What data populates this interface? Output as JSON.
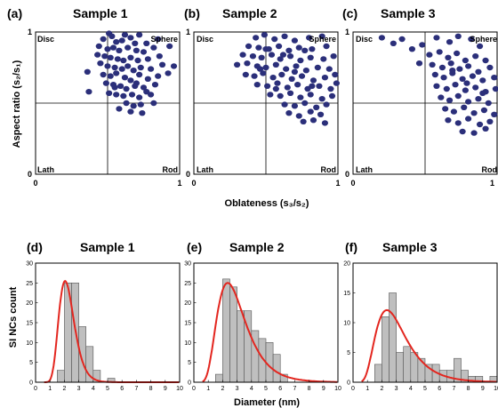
{
  "top_row": {
    "quadrants": {
      "top_left": "Disc",
      "top_right": "Sphere",
      "bottom_left": "Lath",
      "bottom_right": "Rod"
    },
    "xlabel": "Oblateness (s₃/s₂)",
    "ylabel": "Aspect ratio (s₂/s₁)",
    "tick_zero": "0",
    "tick_one": "1"
  },
  "bottom_row": {
    "xlabel": "Diameter (nm)",
    "ylabel": "SI NCs count"
  },
  "colors": {
    "scatter": "#2b2f7a",
    "bar_fill": "#bfbfbf",
    "bar_edge": "#555555",
    "fit_line": "#e3261f"
  },
  "chart_data": [
    {
      "type": "scatter",
      "panel": "(a)",
      "title": "Sample 1",
      "xlim": [
        0,
        1
      ],
      "ylim": [
        0,
        1
      ],
      "divider": {
        "x": 0.5,
        "y": 0.5
      },
      "points": [
        [
          0.51,
          0.99
        ],
        [
          0.53,
          0.97
        ],
        [
          0.62,
          0.98
        ],
        [
          0.66,
          0.96
        ],
        [
          0.72,
          0.98
        ],
        [
          0.47,
          0.95
        ],
        [
          0.56,
          0.93
        ],
        [
          0.6,
          0.94
        ],
        [
          0.69,
          0.92
        ],
        [
          0.77,
          0.92
        ],
        [
          0.85,
          0.95
        ],
        [
          0.44,
          0.9
        ],
        [
          0.5,
          0.88
        ],
        [
          0.54,
          0.89
        ],
        [
          0.58,
          0.87
        ],
        [
          0.64,
          0.89
        ],
        [
          0.7,
          0.87
        ],
        [
          0.75,
          0.86
        ],
        [
          0.82,
          0.89
        ],
        [
          0.93,
          0.9
        ],
        [
          0.43,
          0.84
        ],
        [
          0.48,
          0.83
        ],
        [
          0.52,
          0.82
        ],
        [
          0.57,
          0.81
        ],
        [
          0.61,
          0.8
        ],
        [
          0.66,
          0.82
        ],
        [
          0.71,
          0.8
        ],
        [
          0.78,
          0.81
        ],
        [
          0.86,
          0.83
        ],
        [
          0.45,
          0.78
        ],
        [
          0.5,
          0.76
        ],
        [
          0.55,
          0.75
        ],
        [
          0.6,
          0.74
        ],
        [
          0.64,
          0.76
        ],
        [
          0.68,
          0.73
        ],
        [
          0.73,
          0.75
        ],
        [
          0.8,
          0.74
        ],
        [
          0.88,
          0.77
        ],
        [
          0.96,
          0.76
        ],
        [
          0.36,
          0.72
        ],
        [
          0.47,
          0.7
        ],
        [
          0.52,
          0.69
        ],
        [
          0.56,
          0.71
        ],
        [
          0.62,
          0.68
        ],
        [
          0.66,
          0.66
        ],
        [
          0.72,
          0.7
        ],
        [
          0.78,
          0.67
        ],
        [
          0.85,
          0.69
        ],
        [
          0.92,
          0.71
        ],
        [
          0.49,
          0.64
        ],
        [
          0.54,
          0.63
        ],
        [
          0.59,
          0.62
        ],
        [
          0.63,
          0.6
        ],
        [
          0.69,
          0.62
        ],
        [
          0.75,
          0.61
        ],
        [
          0.83,
          0.63
        ],
        [
          0.37,
          0.58
        ],
        [
          0.51,
          0.57
        ],
        [
          0.56,
          0.56
        ],
        [
          0.61,
          0.55
        ],
        [
          0.67,
          0.56
        ],
        [
          0.72,
          0.54
        ],
        [
          0.8,
          0.56
        ],
        [
          0.63,
          0.5
        ],
        [
          0.68,
          0.48
        ],
        [
          0.73,
          0.49
        ],
        [
          0.82,
          0.5
        ],
        [
          0.58,
          0.46
        ],
        [
          0.66,
          0.44
        ],
        [
          0.74,
          0.43
        ],
        [
          0.55,
          0.61
        ],
        [
          0.7,
          0.64
        ],
        [
          0.77,
          0.58
        ]
      ]
    },
    {
      "type": "scatter",
      "panel": "(b)",
      "title": "Sample 2",
      "xlim": [
        0,
        1
      ],
      "ylim": [
        0,
        1
      ],
      "divider": {
        "x": 0.5,
        "y": 0.5
      },
      "points": [
        [
          0.43,
          0.96
        ],
        [
          0.49,
          0.98
        ],
        [
          0.56,
          0.95
        ],
        [
          0.63,
          0.97
        ],
        [
          0.7,
          0.94
        ],
        [
          0.8,
          0.96
        ],
        [
          0.89,
          0.97
        ],
        [
          0.38,
          0.9
        ],
        [
          0.45,
          0.89
        ],
        [
          0.52,
          0.88
        ],
        [
          0.59,
          0.9
        ],
        [
          0.66,
          0.87
        ],
        [
          0.73,
          0.89
        ],
        [
          0.82,
          0.88
        ],
        [
          0.92,
          0.9
        ],
        [
          0.34,
          0.84
        ],
        [
          0.41,
          0.83
        ],
        [
          0.47,
          0.82
        ],
        [
          0.54,
          0.84
        ],
        [
          0.6,
          0.81
        ],
        [
          0.67,
          0.83
        ],
        [
          0.74,
          0.8
        ],
        [
          0.81,
          0.82
        ],
        [
          0.9,
          0.81
        ],
        [
          0.97,
          0.83
        ],
        [
          0.3,
          0.77
        ],
        [
          0.37,
          0.78
        ],
        [
          0.44,
          0.76
        ],
        [
          0.5,
          0.75
        ],
        [
          0.57,
          0.77
        ],
        [
          0.64,
          0.74
        ],
        [
          0.71,
          0.76
        ],
        [
          0.78,
          0.73
        ],
        [
          0.86,
          0.75
        ],
        [
          0.94,
          0.74
        ],
        [
          0.36,
          0.7
        ],
        [
          0.42,
          0.69
        ],
        [
          0.48,
          0.71
        ],
        [
          0.55,
          0.68
        ],
        [
          0.61,
          0.7
        ],
        [
          0.68,
          0.67
        ],
        [
          0.75,
          0.69
        ],
        [
          0.83,
          0.66
        ],
        [
          0.91,
          0.68
        ],
        [
          0.98,
          0.7
        ],
        [
          0.44,
          0.63
        ],
        [
          0.51,
          0.62
        ],
        [
          0.58,
          0.64
        ],
        [
          0.65,
          0.61
        ],
        [
          0.72,
          0.63
        ],
        [
          0.79,
          0.6
        ],
        [
          0.87,
          0.62
        ],
        [
          0.95,
          0.6
        ],
        [
          0.53,
          0.56
        ],
        [
          0.6,
          0.55
        ],
        [
          0.67,
          0.57
        ],
        [
          0.74,
          0.54
        ],
        [
          0.81,
          0.56
        ],
        [
          0.89,
          0.53
        ],
        [
          0.96,
          0.55
        ],
        [
          0.63,
          0.49
        ],
        [
          0.7,
          0.48
        ],
        [
          0.77,
          0.5
        ],
        [
          0.85,
          0.47
        ],
        [
          0.92,
          0.49
        ],
        [
          0.66,
          0.43
        ],
        [
          0.73,
          0.41
        ],
        [
          0.81,
          0.44
        ],
        [
          0.88,
          0.42
        ],
        [
          0.76,
          0.37
        ],
        [
          0.83,
          0.38
        ],
        [
          0.91,
          0.36
        ],
        [
          0.5,
          0.88
        ],
        [
          0.62,
          0.84
        ],
        [
          0.7,
          0.72
        ],
        [
          0.57,
          0.6
        ],
        [
          0.82,
          0.62
        ],
        [
          0.46,
          0.74
        ],
        [
          0.77,
          0.87
        ],
        [
          0.99,
          0.64
        ]
      ]
    },
    {
      "type": "scatter",
      "panel": "(c)",
      "title": "Sample 3",
      "xlim": [
        0,
        1
      ],
      "ylim": [
        0,
        1
      ],
      "divider": {
        "x": 0.5,
        "y": 0.5
      },
      "points": [
        [
          0.2,
          0.96
        ],
        [
          0.28,
          0.92
        ],
        [
          0.34,
          0.95
        ],
        [
          0.41,
          0.88
        ],
        [
          0.48,
          0.91
        ],
        [
          0.58,
          0.96
        ],
        [
          0.67,
          0.93
        ],
        [
          0.73,
          0.97
        ],
        [
          0.82,
          0.95
        ],
        [
          0.88,
          0.9
        ],
        [
          0.53,
          0.84
        ],
        [
          0.6,
          0.86
        ],
        [
          0.66,
          0.82
        ],
        [
          0.72,
          0.85
        ],
        [
          0.78,
          0.8
        ],
        [
          0.85,
          0.83
        ],
        [
          0.92,
          0.8
        ],
        [
          0.46,
          0.78
        ],
        [
          0.55,
          0.77
        ],
        [
          0.62,
          0.75
        ],
        [
          0.68,
          0.78
        ],
        [
          0.74,
          0.74
        ],
        [
          0.8,
          0.76
        ],
        [
          0.87,
          0.72
        ],
        [
          0.95,
          0.75
        ],
        [
          0.57,
          0.7
        ],
        [
          0.63,
          0.68
        ],
        [
          0.69,
          0.71
        ],
        [
          0.76,
          0.67
        ],
        [
          0.83,
          0.69
        ],
        [
          0.9,
          0.66
        ],
        [
          0.98,
          0.68
        ],
        [
          0.58,
          0.62
        ],
        [
          0.65,
          0.6
        ],
        [
          0.71,
          0.63
        ],
        [
          0.78,
          0.59
        ],
        [
          0.85,
          0.61
        ],
        [
          0.92,
          0.58
        ],
        [
          0.99,
          0.6
        ],
        [
          0.61,
          0.54
        ],
        [
          0.67,
          0.52
        ],
        [
          0.73,
          0.55
        ],
        [
          0.8,
          0.51
        ],
        [
          0.87,
          0.53
        ],
        [
          0.94,
          0.5
        ],
        [
          0.64,
          0.46
        ],
        [
          0.7,
          0.44
        ],
        [
          0.77,
          0.47
        ],
        [
          0.84,
          0.43
        ],
        [
          0.91,
          0.45
        ],
        [
          0.98,
          0.42
        ],
        [
          0.66,
          0.38
        ],
        [
          0.73,
          0.36
        ],
        [
          0.8,
          0.39
        ],
        [
          0.88,
          0.35
        ],
        [
          0.95,
          0.37
        ],
        [
          0.76,
          0.3
        ],
        [
          0.84,
          0.29
        ],
        [
          0.92,
          0.32
        ],
        [
          0.69,
          0.73
        ],
        [
          0.79,
          0.64
        ],
        [
          0.9,
          0.57
        ]
      ]
    },
    {
      "type": "bar",
      "panel": "(d)",
      "title": "Sample 1",
      "xlim": [
        0,
        10
      ],
      "ylim": [
        0,
        30
      ],
      "bin_width": 0.5,
      "bin_starts": [
        0,
        0.5,
        1,
        1.5,
        2,
        2.5,
        3,
        3.5,
        4,
        4.5,
        5,
        5.5,
        6,
        6.5,
        7,
        7.5,
        8,
        8.5,
        9,
        9.5
      ],
      "values": [
        0,
        0,
        0,
        3,
        25,
        25,
        14,
        9,
        3,
        0,
        1,
        0,
        0,
        0,
        0,
        0,
        0,
        0,
        0,
        0
      ],
      "fit": {
        "type": "lognormal",
        "peak_x": 2.05,
        "peak_y": 25.5,
        "sigma": 0.26
      }
    },
    {
      "type": "bar",
      "panel": "(e)",
      "title": "Sample 2",
      "xlim": [
        0,
        10
      ],
      "ylim": [
        0,
        30
      ],
      "bin_width": 0.5,
      "bin_starts": [
        0,
        0.5,
        1,
        1.5,
        2,
        2.5,
        3,
        3.5,
        4,
        4.5,
        5,
        5.5,
        6,
        6.5,
        7,
        7.5,
        8,
        8.5,
        9,
        9.5
      ],
      "values": [
        0,
        0,
        0,
        2,
        26,
        24,
        18,
        18,
        13,
        11,
        10,
        7,
        2,
        0,
        0,
        0,
        0,
        0,
        0,
        0
      ],
      "fit": {
        "type": "lognormal",
        "peak_x": 2.35,
        "peak_y": 25.0,
        "sigma": 0.42
      }
    },
    {
      "type": "bar",
      "panel": "(f)",
      "title": "Sample 3",
      "xlim": [
        0,
        10
      ],
      "ylim": [
        0,
        20
      ],
      "bin_width": 0.5,
      "bin_starts": [
        0,
        0.5,
        1,
        1.5,
        2,
        2.5,
        3,
        3.5,
        4,
        4.5,
        5,
        5.5,
        6,
        6.5,
        7,
        7.5,
        8,
        8.5,
        9,
        9.5
      ],
      "values": [
        0,
        0,
        0,
        3,
        11,
        15,
        5,
        6,
        5,
        4,
        3,
        3,
        2,
        2,
        4,
        2,
        1,
        1,
        0,
        1
      ],
      "fit": {
        "type": "lognormal",
        "peak_x": 2.35,
        "peak_y": 12.1,
        "sigma": 0.45
      }
    }
  ]
}
